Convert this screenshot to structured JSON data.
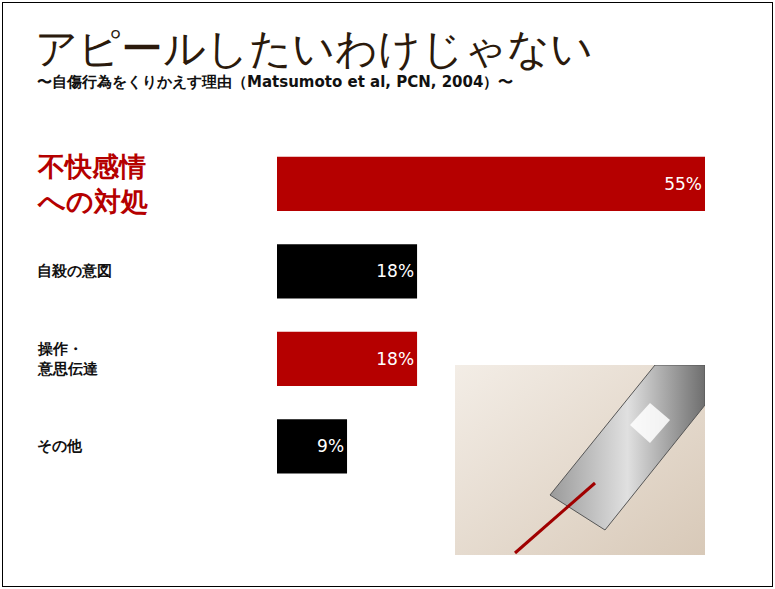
{
  "chart_data": {
    "type": "bar",
    "orientation": "horizontal",
    "title": "アピールしたいわけじゃない",
    "subtitle": "〜自傷行為をくりかえす理由（Matsumoto et al, PCN, 2004）〜",
    "categories": [
      "不快感情\nへの対処",
      "自殺の意図",
      "操作・\n意思伝達",
      "その他"
    ],
    "values": [
      55,
      18,
      18,
      9
    ],
    "value_labels": [
      "55%",
      "18%",
      "18%",
      "9%"
    ],
    "colors": [
      "#b50000",
      "#000000",
      "#b50000",
      "#000000"
    ],
    "xlim": [
      0,
      55
    ],
    "grid": false,
    "data_labels": true,
    "tick_labels": "y"
  }
}
